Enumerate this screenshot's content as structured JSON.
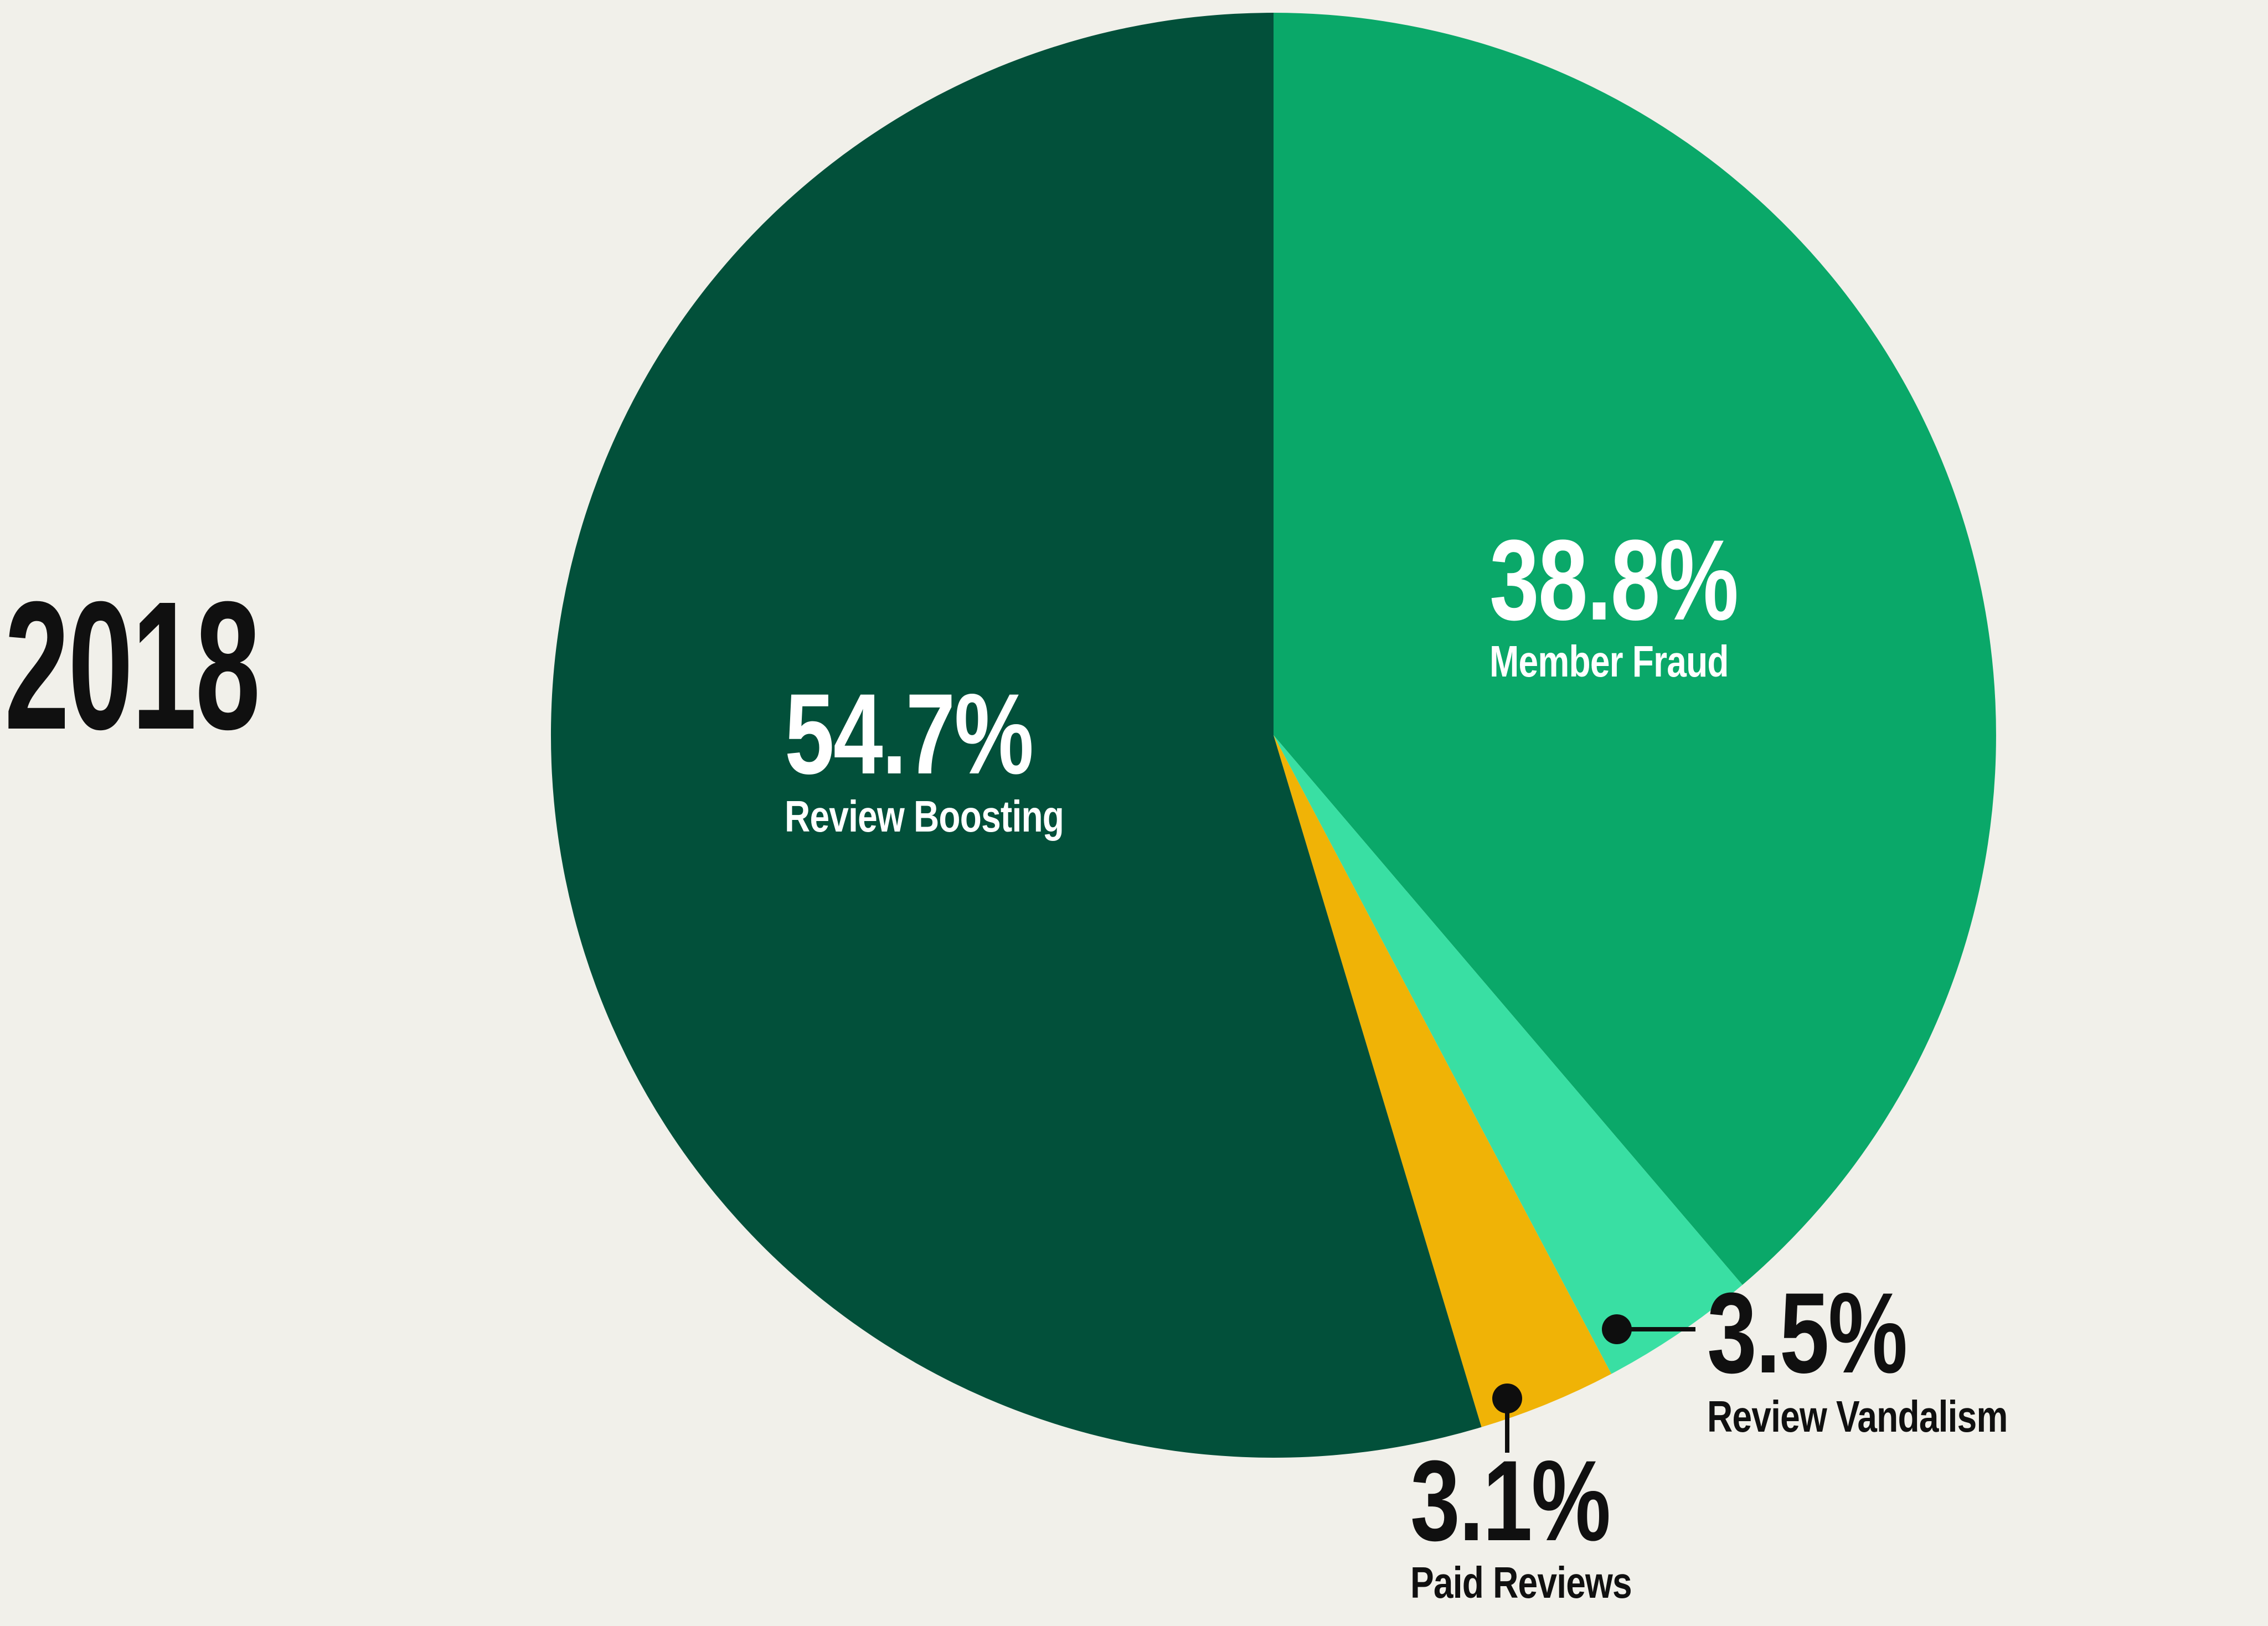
{
  "background_color": "#F1F0EA",
  "annotation_color": "#0E0E0E",
  "year_label": "2018",
  "chart_data": {
    "type": "pie",
    "title": "2018",
    "direction": "clockwise",
    "start_angle_deg": 0,
    "legend_position": "labels inside large slices, outside callouts with dot leader lines for small slices",
    "slices": [
      {
        "id": "member-fraud",
        "label": "Member Fraud",
        "value_pct": 38.8,
        "value_display": "38.8%",
        "color": "#0AA869",
        "label_color": "#FFFFFF",
        "label_placement": "inside"
      },
      {
        "id": "review-vandalism",
        "label": "Review Vandalism",
        "value_pct": 3.5,
        "value_display": "3.5%",
        "color": "#39DFA3",
        "label_color": "#101010",
        "label_placement": "outside-callout"
      },
      {
        "id": "paid-reviews",
        "label": "Paid Reviews",
        "value_pct": 3.1,
        "value_display": "3.1%",
        "color": "#F0B306",
        "label_color": "#101010",
        "label_placement": "outside-callout"
      },
      {
        "id": "review-boosting",
        "label": "Review Boosting",
        "value_pct": 54.7,
        "value_display": "54.7%",
        "color": "#02503A",
        "label_color": "#FFFFFF",
        "label_placement": "inside"
      }
    ]
  }
}
